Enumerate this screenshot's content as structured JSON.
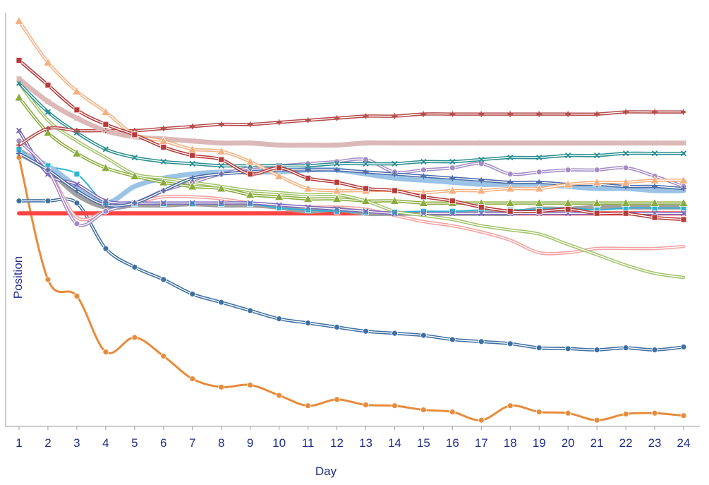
{
  "chart_data": {
    "type": "line",
    "xlabel": "Day",
    "ylabel": "Position",
    "x": [
      1,
      2,
      3,
      4,
      5,
      6,
      7,
      8,
      9,
      10,
      11,
      12,
      13,
      14,
      15,
      16,
      17,
      18,
      19,
      20,
      21,
      22,
      23,
      24
    ],
    "xlim": [
      1,
      24
    ],
    "ylim": [
      0,
      100
    ],
    "grid": false,
    "legend": "none",
    "series": [
      {
        "color": "#e88b3a",
        "style": "solid",
        "marker": "circle",
        "width": 3,
        "values": [
          65.0,
          35.5,
          31.5,
          18.0,
          21.5,
          17.0,
          11.5,
          9.5,
          10.0,
          7.5,
          5.0,
          6.5,
          5.2,
          5.0,
          4.0,
          3.5,
          1.5,
          5.0,
          3.5,
          3.2,
          1.5,
          3.0,
          3.2,
          2.6
        ]
      },
      {
        "color": "#3d6fa3",
        "style": "double",
        "marker": "circle",
        "width": 2,
        "values": [
          54.5,
          54.5,
          54.0,
          43.0,
          38.5,
          35.5,
          32.0,
          30.0,
          28.0,
          26.0,
          25.0,
          24.0,
          23.0,
          22.5,
          22.0,
          21.0,
          20.5,
          20.0,
          19.0,
          18.8,
          18.5,
          19.0,
          18.5,
          19.2
        ]
      },
      {
        "color": "#ff4444",
        "style": "solid",
        "marker": "none",
        "width": 6,
        "values": [
          51.5,
          51.5,
          51.5,
          51.5,
          51.5,
          51.5,
          51.5,
          51.5,
          51.5,
          51.5,
          51.5,
          51.5,
          51.5,
          51.5,
          51.5,
          51.5,
          51.5,
          51.5,
          51.5,
          51.5,
          51.5,
          51.5,
          51.5,
          51.5
        ]
      },
      {
        "color": "#f4a0a0",
        "style": "double",
        "marker": "none",
        "width": 2,
        "values": [
          67.0,
          62.0,
          50.5,
          52.0,
          54.0,
          55.5,
          55.5,
          55.0,
          54.0,
          53.5,
          53.0,
          53.0,
          52.5,
          51.0,
          49.5,
          48.5,
          47.0,
          45.0,
          42.0,
          42.0,
          43.0,
          43.0,
          43.0,
          43.5
        ]
      },
      {
        "color": "#a0a0a0",
        "style": "solid",
        "marker": "none",
        "width": 7,
        "values": [
          66.0,
          62.0,
          56.0,
          53.0,
          53.5,
          53.5,
          53.8,
          53.5,
          53.5,
          53.0,
          52.0,
          52.5,
          51.5,
          51.5,
          51.5,
          51.5,
          51.5,
          51.5,
          52.5,
          52.5,
          53.0,
          53.0,
          53.0,
          53.0
        ]
      },
      {
        "color": "#2bb5d6",
        "style": "solid",
        "marker": "square",
        "width": 2,
        "values": [
          67.0,
          63.0,
          61.0,
          54.0,
          53.8,
          53.8,
          53.8,
          53.8,
          53.8,
          52.8,
          52.3,
          52.0,
          51.8,
          51.8,
          52.0,
          52.0,
          52.3,
          52.3,
          52.5,
          52.8,
          52.3,
          52.8,
          52.8,
          52.8
        ]
      },
      {
        "color": "#9bc3e6",
        "style": "solid",
        "marker": "none",
        "width": 7,
        "values": [
          66.0,
          63.0,
          58.0,
          54.0,
          58.0,
          60.0,
          61.0,
          61.5,
          61.5,
          61.5,
          62.0,
          62.0,
          61.0,
          60.0,
          59.5,
          59.0,
          58.5,
          58.5,
          58.5,
          58.0,
          57.5,
          57.5,
          57.0,
          57.0
        ]
      },
      {
        "color": "#7d6ab8",
        "style": "double",
        "marker": "x",
        "width": 2,
        "values": [
          71.5,
          61.0,
          58.5,
          54.5,
          54.0,
          54.0,
          54.0,
          54.0,
          54.0,
          53.5,
          53.0,
          52.5,
          52.0,
          51.5,
          51.5,
          51.5,
          51.5,
          51.5,
          51.5,
          51.5,
          51.5,
          51.5,
          51.5,
          51.5
        ]
      },
      {
        "color": "#a48cc8",
        "style": "double",
        "marker": "circle",
        "width": 2,
        "values": [
          69.0,
          62.0,
          49.0,
          52.0,
          54.0,
          57.0,
          59.0,
          61.0,
          62.5,
          63.0,
          63.5,
          64.0,
          64.5,
          61.5,
          62.0,
          62.5,
          63.5,
          61.0,
          61.5,
          62.0,
          62.0,
          62.5,
          60.5,
          58.0
        ]
      },
      {
        "color": "#8aac3c",
        "style": "double",
        "marker": "triangle",
        "width": 2,
        "values": [
          79.5,
          71.0,
          66.0,
          62.5,
          60.5,
          59.0,
          58.0,
          57.5,
          56.0,
          55.5,
          55.0,
          55.0,
          54.5,
          54.5,
          54.0,
          54.0,
          54.0,
          54.0,
          54.0,
          54.0,
          54.0,
          54.0,
          54.0,
          54.0
        ]
      },
      {
        "color": "#a2c46a",
        "style": "double",
        "marker": "none",
        "width": 2,
        "values": [
          83.0,
          74.0,
          69.0,
          65.0,
          61.0,
          60.0,
          59.0,
          58.0,
          57.0,
          56.5,
          56.0,
          56.0,
          54.5,
          52.0,
          51.0,
          50.0,
          48.5,
          47.5,
          46.5,
          44.0,
          41.5,
          39.0,
          37.0,
          36.0
        ]
      },
      {
        "color": "#2a8f8f",
        "style": "double",
        "marker": "x",
        "width": 2,
        "values": [
          83.0,
          76.0,
          71.0,
          67.0,
          65.0,
          64.0,
          63.5,
          63.0,
          63.0,
          63.0,
          63.0,
          63.5,
          63.5,
          63.5,
          64.0,
          64.0,
          64.5,
          65.0,
          65.0,
          65.5,
          65.5,
          66.0,
          66.0,
          66.0
        ]
      },
      {
        "color": "#b54a4a",
        "style": "double",
        "marker": "plus",
        "width": 2,
        "values": [
          68.0,
          72.0,
          71.5,
          71.5,
          71.5,
          72.0,
          72.5,
          73.0,
          73.0,
          73.5,
          74.0,
          74.5,
          75.0,
          75.0,
          75.5,
          75.5,
          75.5,
          75.5,
          75.5,
          75.5,
          75.5,
          76.0,
          76.0,
          76.0
        ]
      },
      {
        "color": "#dcb8b8",
        "style": "solid",
        "marker": "x",
        "width": 7,
        "values": [
          84.0,
          78.5,
          74.5,
          71.5,
          70.0,
          69.5,
          69.0,
          68.5,
          68.5,
          68.0,
          68.0,
          68.0,
          68.5,
          68.5,
          68.5,
          68.5,
          68.5,
          68.5,
          68.5,
          68.5,
          68.5,
          68.5,
          68.5,
          68.5
        ]
      },
      {
        "color": "#4b6ca8",
        "style": "double",
        "marker": "plus",
        "width": 2,
        "values": [
          66.0,
          62.0,
          57.0,
          53.5,
          54.0,
          57.0,
          60.0,
          61.0,
          61.5,
          62.0,
          62.0,
          62.0,
          61.5,
          61.0,
          60.5,
          60.0,
          59.5,
          59.0,
          59.0,
          58.5,
          58.5,
          58.0,
          58.0,
          57.5
        ]
      },
      {
        "color": "#f5b080",
        "style": "double",
        "marker": "triangle",
        "width": 2,
        "values": [
          98.0,
          88.0,
          81.0,
          76.0,
          70.5,
          69.0,
          67.0,
          66.5,
          64.0,
          60.5,
          57.5,
          57.0,
          57.0,
          57.0,
          56.5,
          57.0,
          57.0,
          57.5,
          57.5,
          58.5,
          59.0,
          59.0,
          59.5,
          59.5
        ]
      },
      {
        "color": "#b83a3a",
        "style": "double",
        "marker": "square",
        "width": 2,
        "values": [
          88.5,
          82.5,
          76.5,
          73.0,
          70.5,
          67.5,
          65.5,
          64.5,
          61.0,
          62.5,
          60.0,
          59.0,
          57.5,
          57.0,
          55.5,
          54.5,
          53.0,
          52.0,
          52.0,
          52.5,
          51.5,
          51.5,
          50.5,
          50.0
        ]
      }
    ]
  }
}
